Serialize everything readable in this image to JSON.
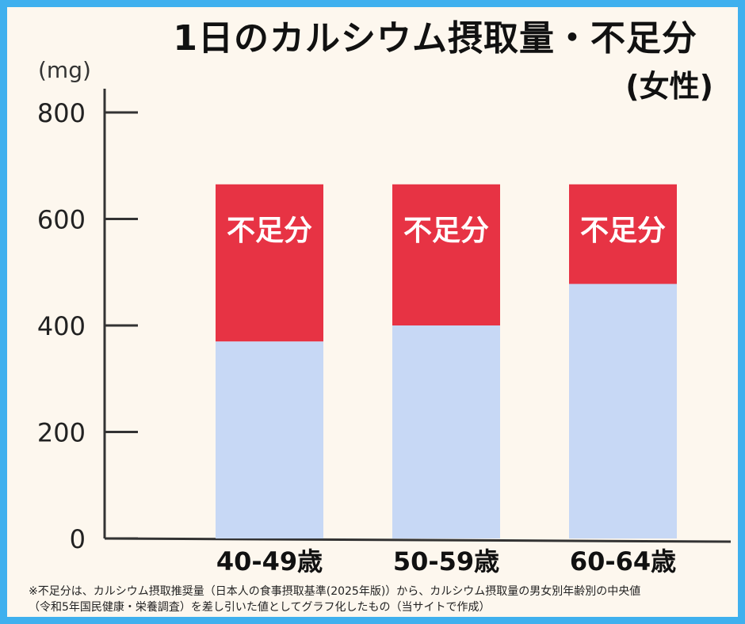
{
  "chart_data": {
    "type": "bar",
    "title": "1日のカルシウム摂取量・不足分",
    "subtitle": "(女性)",
    "ylabel": "(mg)",
    "ylim": [
      0,
      800
    ],
    "yticks": [
      "0",
      "200",
      "400",
      "600",
      "800"
    ],
    "categories": [
      "40-49歳",
      "50-59歳",
      "60-64歳"
    ],
    "series": [
      {
        "values": [
          370,
          400,
          478
        ]
      },
      {
        "values": [
          295,
          265,
          187
        ],
        "label": "不足分"
      }
    ],
    "colors": {
      "intake": "#c7d8f5",
      "shortfall": "#e73344",
      "axis": "#333333"
    },
    "stacked": true,
    "grid": false
  },
  "notes": [
    "※不足分は、カルシウム摂取推奨量（日本人の食事摂取基準(2025年版)）から、カルシウム摂取量の男女別年齢別の中央値",
    "（令和5年国民健康・栄養調査）を差し引いた値としてグラフ化したもの（当サイトで作成）"
  ]
}
